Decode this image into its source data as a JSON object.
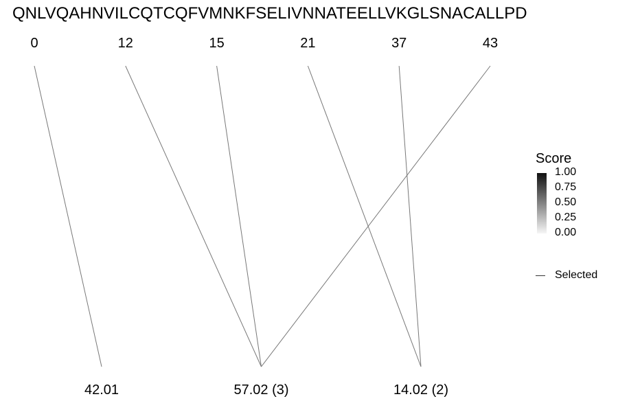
{
  "chart_data": {
    "type": "alignment",
    "sequence": "QNLVQAHNVILCQTCQFVMNKFSELIVNNATEELLVKGLSNACALLPD",
    "positions": [
      0,
      12,
      15,
      21,
      37,
      43
    ],
    "masses": [
      "42.01",
      "57.02 (3)",
      "14.02 (2)"
    ],
    "links": [
      {
        "position": 0,
        "mass": "42.01"
      },
      {
        "position": 12,
        "mass": "57.02 (3)"
      },
      {
        "position": 15,
        "mass": "57.02 (3)"
      },
      {
        "position": 43,
        "mass": "57.02 (3)"
      },
      {
        "position": 21,
        "mass": "14.02 (2)"
      },
      {
        "position": 37,
        "mass": "14.02 (2)"
      }
    ],
    "legend": {
      "title": "Score",
      "ticks": [
        "1.00",
        "0.75",
        "0.50",
        "0.25",
        "0.00"
      ],
      "colors": {
        "high": "#111111",
        "low": "#f6f6f6"
      },
      "selected_label": "Selected"
    },
    "line_color": "#777777"
  }
}
